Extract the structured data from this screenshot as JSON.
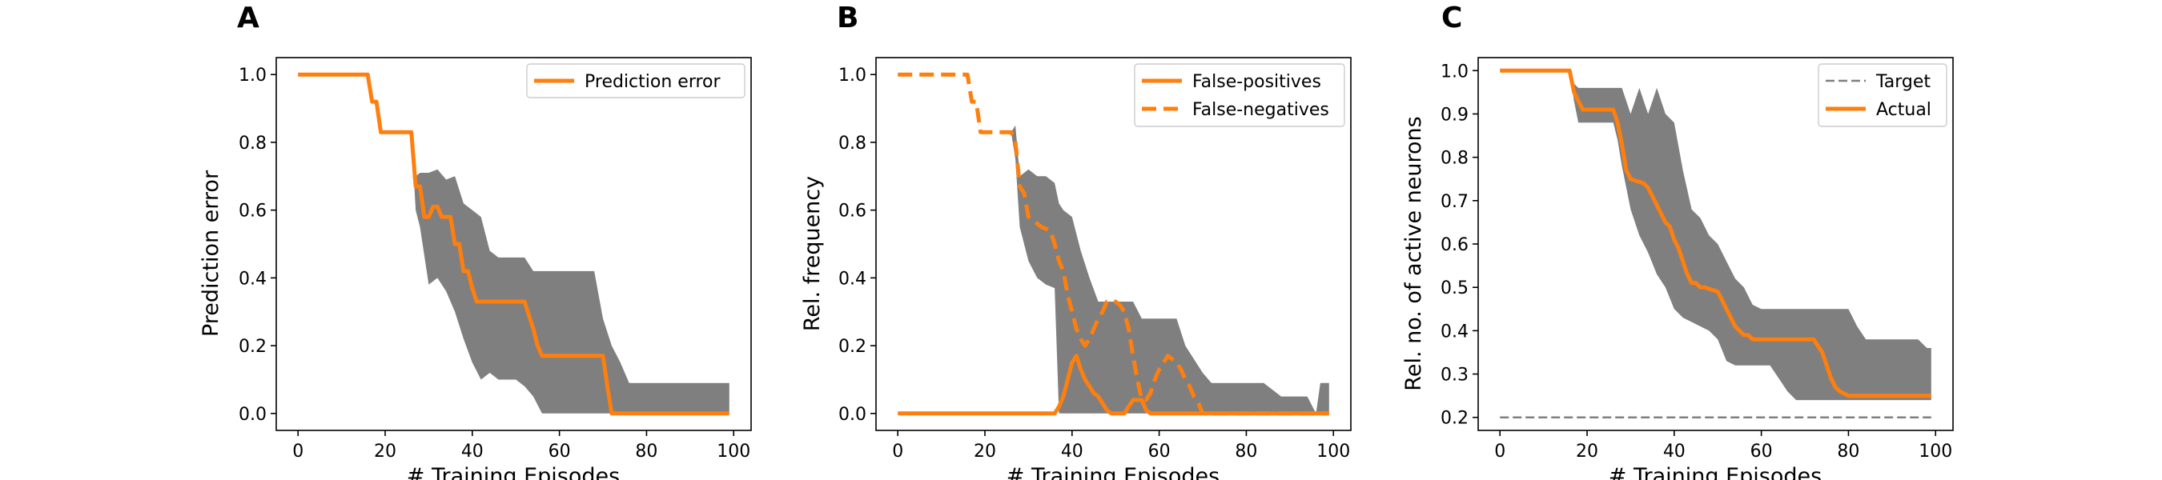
{
  "figure": {
    "panel_labels": [
      "A",
      "B",
      "C"
    ]
  },
  "colors": {
    "line": "#ff7f0e",
    "band": "#7f7f7f",
    "target": "#7f7f7f"
  },
  "chart_data": [
    {
      "type": "line",
      "panel": "A",
      "xlabel": "# Training Episodes",
      "ylabel": "Prediction error",
      "xlim": [
        -5,
        104
      ],
      "ylim": [
        -0.05,
        1.05
      ],
      "xticks": [
        0,
        20,
        40,
        60,
        80,
        100
      ],
      "yticks": [
        0.0,
        0.2,
        0.4,
        0.6,
        0.8,
        1.0
      ],
      "legend_position": "top-right",
      "series": [
        {
          "name": "Prediction error",
          "style": "solid",
          "x": [
            0,
            16,
            17,
            18,
            19,
            26,
            27,
            28,
            29,
            30,
            31,
            32,
            33,
            34,
            35,
            36,
            37,
            38,
            39,
            40,
            41,
            45,
            52,
            53,
            54,
            55,
            56,
            70,
            71,
            72,
            80,
            99
          ],
          "y": [
            1.0,
            1.0,
            0.92,
            0.92,
            0.83,
            0.83,
            0.67,
            0.67,
            0.58,
            0.58,
            0.61,
            0.61,
            0.58,
            0.58,
            0.58,
            0.5,
            0.5,
            0.42,
            0.42,
            0.37,
            0.33,
            0.33,
            0.33,
            0.29,
            0.25,
            0.2,
            0.17,
            0.17,
            0.08,
            0.0,
            0.0,
            0.0
          ]
        }
      ],
      "band": {
        "x": [
          0,
          16,
          17,
          18,
          19,
          26,
          27,
          28,
          30,
          32,
          34,
          36,
          38,
          40,
          42,
          44,
          46,
          48,
          50,
          52,
          54,
          56,
          58,
          60,
          62,
          64,
          66,
          68,
          70,
          72,
          74,
          76,
          80,
          90,
          99
        ],
        "lower": [
          1.0,
          1.0,
          0.92,
          0.92,
          0.83,
          0.83,
          0.6,
          0.55,
          0.38,
          0.4,
          0.36,
          0.3,
          0.22,
          0.15,
          0.1,
          0.12,
          0.1,
          0.1,
          0.1,
          0.08,
          0.05,
          0.0,
          0.0,
          0.0,
          0.0,
          0.0,
          0.0,
          0.0,
          0.0,
          0.0,
          0.0,
          0.0,
          0.0,
          0.0,
          0.0
        ],
        "upper": [
          1.0,
          1.0,
          0.92,
          0.92,
          0.83,
          0.83,
          0.7,
          0.71,
          0.71,
          0.72,
          0.69,
          0.7,
          0.62,
          0.6,
          0.58,
          0.48,
          0.46,
          0.46,
          0.46,
          0.46,
          0.42,
          0.42,
          0.42,
          0.42,
          0.42,
          0.42,
          0.42,
          0.42,
          0.28,
          0.2,
          0.15,
          0.09,
          0.09,
          0.09,
          0.09
        ]
      }
    },
    {
      "type": "line",
      "panel": "B",
      "xlabel": "# Training Episodes",
      "ylabel": "Rel. frequency",
      "xlim": [
        -5,
        104
      ],
      "ylim": [
        -0.05,
        1.05
      ],
      "xticks": [
        0,
        20,
        40,
        60,
        80,
        100
      ],
      "yticks": [
        0.0,
        0.2,
        0.4,
        0.6,
        0.8,
        1.0
      ],
      "legend_position": "top-right",
      "series": [
        {
          "name": "False-positives",
          "style": "solid",
          "x": [
            0,
            36,
            37,
            38,
            39,
            40,
            41,
            42,
            43,
            44,
            45,
            46,
            47,
            48,
            49,
            50,
            51,
            52,
            53,
            54,
            55,
            56,
            57,
            58,
            99
          ],
          "y": [
            0.0,
            0.0,
            0.02,
            0.05,
            0.1,
            0.15,
            0.17,
            0.13,
            0.1,
            0.08,
            0.06,
            0.05,
            0.03,
            0.01,
            0.0,
            0.0,
            0.0,
            0.0,
            0.02,
            0.04,
            0.04,
            0.04,
            0.01,
            0.0,
            0.0
          ]
        },
        {
          "name": "False-negatives",
          "style": "dashed",
          "x": [
            0,
            16,
            17,
            18,
            19,
            26,
            27,
            28,
            29,
            30,
            31,
            33,
            35,
            36,
            37,
            38,
            39,
            40,
            41,
            42,
            43,
            44,
            45,
            46,
            47,
            48,
            49,
            50,
            51,
            52,
            53,
            54,
            55,
            56,
            57,
            58,
            59,
            60,
            61,
            62,
            63,
            64,
            65,
            66,
            67,
            68,
            69,
            70,
            99
          ],
          "y": [
            1.0,
            1.0,
            0.92,
            0.92,
            0.83,
            0.83,
            0.8,
            0.67,
            0.65,
            0.58,
            0.57,
            0.55,
            0.54,
            0.5,
            0.45,
            0.42,
            0.35,
            0.3,
            0.25,
            0.22,
            0.2,
            0.22,
            0.25,
            0.28,
            0.3,
            0.33,
            0.33,
            0.33,
            0.32,
            0.3,
            0.25,
            0.17,
            0.1,
            0.04,
            0.04,
            0.06,
            0.1,
            0.13,
            0.15,
            0.17,
            0.16,
            0.15,
            0.13,
            0.1,
            0.08,
            0.05,
            0.03,
            0.0,
            0.0
          ]
        }
      ],
      "band": {
        "x": [
          0,
          16,
          17,
          18,
          19,
          26,
          27,
          28,
          30,
          32,
          34,
          36,
          37,
          38,
          40,
          42,
          44,
          46,
          48,
          50,
          52,
          54,
          56,
          58,
          60,
          62,
          64,
          66,
          68,
          70,
          72,
          74,
          76,
          78,
          80,
          84,
          88,
          92,
          94,
          96,
          97,
          98,
          99
        ],
        "lower": [
          1.0,
          1.0,
          0.92,
          0.92,
          0.83,
          0.83,
          0.75,
          0.55,
          0.45,
          0.4,
          0.38,
          0.37,
          0.0,
          0.0,
          0.0,
          0.0,
          0.0,
          0.0,
          0.0,
          0.0,
          0.0,
          0.0,
          0.0,
          0.0,
          0.0,
          0.0,
          0.0,
          0.0,
          0.0,
          0.0,
          0.0,
          0.0,
          0.0,
          0.0,
          0.0,
          0.0,
          0.0,
          0.0,
          0.0,
          0.0,
          0.0,
          0.0,
          0.0
        ],
        "upper": [
          1.0,
          1.0,
          0.92,
          0.92,
          0.83,
          0.83,
          0.85,
          0.7,
          0.72,
          0.7,
          0.7,
          0.68,
          0.62,
          0.6,
          0.58,
          0.48,
          0.4,
          0.33,
          0.33,
          0.33,
          0.33,
          0.33,
          0.28,
          0.28,
          0.28,
          0.28,
          0.28,
          0.2,
          0.16,
          0.12,
          0.09,
          0.09,
          0.09,
          0.09,
          0.09,
          0.09,
          0.05,
          0.05,
          0.05,
          0.0,
          0.09,
          0.09,
          0.09
        ]
      }
    },
    {
      "type": "line",
      "panel": "C",
      "xlabel": "# Training Episodes",
      "ylabel": "Rel. no. of active neurons",
      "xlim": [
        -5,
        104
      ],
      "ylim": [
        0.17,
        1.03
      ],
      "xticks": [
        0,
        20,
        40,
        60,
        80,
        100
      ],
      "yticks": [
        0.2,
        0.3,
        0.4,
        0.5,
        0.6,
        0.7,
        0.8,
        0.9,
        1.0
      ],
      "legend_position": "top-right",
      "series": [
        {
          "name": "Target",
          "style": "dashed-thin",
          "x": [
            0,
            99
          ],
          "y": [
            0.2,
            0.2
          ]
        },
        {
          "name": "Actual",
          "style": "solid",
          "x": [
            0,
            16,
            17,
            18,
            19,
            26,
            27,
            28,
            29,
            30,
            33,
            34,
            35,
            36,
            37,
            38,
            39,
            40,
            41,
            42,
            43,
            44,
            45,
            46,
            47,
            50,
            51,
            52,
            53,
            54,
            55,
            56,
            57,
            58,
            59,
            60,
            72,
            74,
            75,
            76,
            77,
            78,
            80,
            85,
            90,
            99
          ],
          "y": [
            1.0,
            1.0,
            0.95,
            0.93,
            0.91,
            0.91,
            0.88,
            0.83,
            0.77,
            0.75,
            0.74,
            0.73,
            0.71,
            0.69,
            0.67,
            0.65,
            0.64,
            0.61,
            0.59,
            0.56,
            0.53,
            0.51,
            0.51,
            0.5,
            0.5,
            0.49,
            0.47,
            0.45,
            0.43,
            0.41,
            0.4,
            0.39,
            0.39,
            0.38,
            0.38,
            0.38,
            0.38,
            0.35,
            0.32,
            0.29,
            0.27,
            0.26,
            0.25,
            0.25,
            0.25,
            0.25
          ]
        }
      ],
      "band": {
        "x": [
          0,
          16,
          17,
          18,
          20,
          26,
          27,
          28,
          30,
          32,
          34,
          36,
          38,
          40,
          42,
          44,
          46,
          48,
          50,
          52,
          54,
          56,
          58,
          60,
          62,
          64,
          66,
          68,
          70,
          72,
          74,
          76,
          78,
          80,
          82,
          84,
          86,
          88,
          90,
          92,
          94,
          96,
          98,
          99
        ],
        "lower": [
          1.0,
          1.0,
          0.93,
          0.88,
          0.88,
          0.88,
          0.84,
          0.78,
          0.68,
          0.62,
          0.58,
          0.53,
          0.5,
          0.45,
          0.43,
          0.42,
          0.41,
          0.4,
          0.38,
          0.33,
          0.32,
          0.32,
          0.32,
          0.32,
          0.32,
          0.29,
          0.26,
          0.24,
          0.24,
          0.24,
          0.24,
          0.24,
          0.24,
          0.24,
          0.24,
          0.24,
          0.24,
          0.24,
          0.24,
          0.24,
          0.24,
          0.24,
          0.24,
          0.24
        ],
        "upper": [
          1.0,
          1.0,
          0.97,
          0.96,
          0.96,
          0.96,
          0.96,
          0.96,
          0.9,
          0.96,
          0.9,
          0.96,
          0.9,
          0.88,
          0.77,
          0.68,
          0.66,
          0.62,
          0.6,
          0.56,
          0.52,
          0.5,
          0.46,
          0.45,
          0.45,
          0.45,
          0.45,
          0.45,
          0.45,
          0.45,
          0.45,
          0.45,
          0.45,
          0.45,
          0.41,
          0.38,
          0.38,
          0.38,
          0.38,
          0.38,
          0.38,
          0.38,
          0.36,
          0.36
        ]
      }
    }
  ]
}
